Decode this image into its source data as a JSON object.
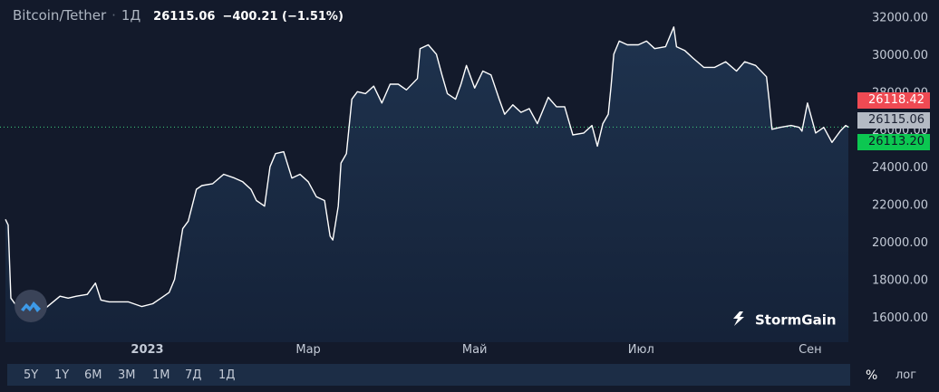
{
  "header": {
    "pair": "Bitcoin/Tether",
    "separator": "·",
    "timeframe": "1Д",
    "price": "26115.06",
    "change": "−400.21 (−1.51%)"
  },
  "price_tags": {
    "high": "26118.42",
    "current": "26115.06",
    "low": "26113.20"
  },
  "brand": "StormGain",
  "periods": [
    "5Y",
    "1Y",
    "6M",
    "3M",
    "1M",
    "7Д",
    "1Д"
  ],
  "controls": {
    "percent": "%",
    "log": "лог"
  },
  "colors": {
    "background": "#131a2b",
    "line": "#ffffff",
    "up": "#ef4a53",
    "down": "#0cc751"
  },
  "chart_data": {
    "type": "area",
    "title": "",
    "xlabel": "",
    "ylabel": "",
    "ylim": [
      14650,
      32600
    ],
    "y_ticks": [
      16000,
      18000,
      20000,
      22000,
      24000,
      26000,
      28000,
      30000,
      32000
    ],
    "y_tick_labels": [
      "16000.00",
      "18000.00",
      "20000.00",
      "22000.00",
      "24000.00",
      "26000.00",
      "28000.00",
      "30000.00",
      "32000.00"
    ],
    "x_tick_labels": [
      {
        "label": "2023",
        "date": "2023-01-01"
      },
      {
        "label": "Мар",
        "date": "2023-03-01"
      },
      {
        "label": "Май",
        "date": "2023-05-01"
      },
      {
        "label": "Июл",
        "date": "2023-07-01"
      },
      {
        "label": "Сен",
        "date": "2023-09-01"
      }
    ],
    "x_range": [
      "2022-11-10",
      "2023-09-15"
    ],
    "current_value": 26115.06,
    "grid": false,
    "series": [
      {
        "x": [
          "2022-11-10",
          "2022-11-11",
          "2022-11-12",
          "2022-11-14",
          "2022-11-16",
          "2022-11-18",
          "2022-11-21",
          "2022-11-25",
          "2022-11-30",
          "2022-12-03",
          "2022-12-06",
          "2022-12-10",
          "2022-12-13",
          "2022-12-15",
          "2022-12-18",
          "2022-12-21",
          "2022-12-25",
          "2022-12-30",
          "2023-01-03",
          "2023-01-06",
          "2023-01-09",
          "2023-01-11",
          "2023-01-13",
          "2023-01-14",
          "2023-01-16",
          "2023-01-19",
          "2023-01-21",
          "2023-01-25",
          "2023-01-29",
          "2023-02-02",
          "2023-02-05",
          "2023-02-08",
          "2023-02-10",
          "2023-02-13",
          "2023-02-15",
          "2023-02-17",
          "2023-02-20",
          "2023-02-23",
          "2023-02-26",
          "2023-03-01",
          "2023-03-04",
          "2023-03-07",
          "2023-03-09",
          "2023-03-10",
          "2023-03-12",
          "2023-03-13",
          "2023-03-15",
          "2023-03-17",
          "2023-03-19",
          "2023-03-22",
          "2023-03-25",
          "2023-03-28",
          "2023-03-31",
          "2023-04-03",
          "2023-04-06",
          "2023-04-10",
          "2023-04-11",
          "2023-04-14",
          "2023-04-17",
          "2023-04-19",
          "2023-04-21",
          "2023-04-24",
          "2023-04-26",
          "2023-04-28",
          "2023-05-01",
          "2023-05-04",
          "2023-05-07",
          "2023-05-10",
          "2023-05-12",
          "2023-05-15",
          "2023-05-18",
          "2023-05-21",
          "2023-05-24",
          "2023-05-28",
          "2023-05-31",
          "2023-06-03",
          "2023-06-06",
          "2023-06-10",
          "2023-06-13",
          "2023-06-15",
          "2023-06-17",
          "2023-06-19",
          "2023-06-20",
          "2023-06-21",
          "2023-06-23",
          "2023-06-26",
          "2023-06-30",
          "2023-07-03",
          "2023-07-06",
          "2023-07-10",
          "2023-07-13",
          "2023-07-14",
          "2023-07-17",
          "2023-07-20",
          "2023-07-24",
          "2023-07-28",
          "2023-08-01",
          "2023-08-05",
          "2023-08-08",
          "2023-08-12",
          "2023-08-16",
          "2023-08-17",
          "2023-08-18",
          "2023-08-21",
          "2023-08-25",
          "2023-08-28",
          "2023-08-29",
          "2023-08-31",
          "2023-09-03",
          "2023-09-06",
          "2023-09-09",
          "2023-09-11",
          "2023-09-12",
          "2023-09-14",
          "2023-09-15"
        ],
        "values": [
          21200,
          20900,
          17000,
          16600,
          16800,
          16500,
          15800,
          16500,
          17100,
          17000,
          17100,
          17200,
          17800,
          16900,
          16800,
          16800,
          16800,
          16550,
          16700,
          17000,
          17300,
          18000,
          19800,
          20700,
          21100,
          22800,
          23000,
          23100,
          23600,
          23400,
          23200,
          22800,
          22200,
          21900,
          24000,
          24700,
          24800,
          23400,
          23600,
          23200,
          22400,
          22200,
          20300,
          20100,
          21900,
          24200,
          24700,
          27600,
          28000,
          27900,
          28300,
          27400,
          28400,
          28400,
          28100,
          28700,
          30300,
          30500,
          30000,
          28900,
          27900,
          27600,
          28400,
          29400,
          28200,
          29100,
          28900,
          27600,
          26800,
          27300,
          26900,
          27100,
          26300,
          27700,
          27200,
          27200,
          25700,
          25800,
          26200,
          25100,
          26300,
          26800,
          28300,
          30000,
          30700,
          30500,
          30500,
          30700,
          30300,
          30400,
          31450,
          30400,
          30200,
          29800,
          29300,
          29300,
          29600,
          29100,
          29600,
          29400,
          28800,
          27500,
          26000,
          26100,
          26200,
          26100,
          25900,
          27400,
          25800,
          26100,
          25300,
          25700,
          25900,
          26200,
          26115
        ]
      }
    ]
  }
}
